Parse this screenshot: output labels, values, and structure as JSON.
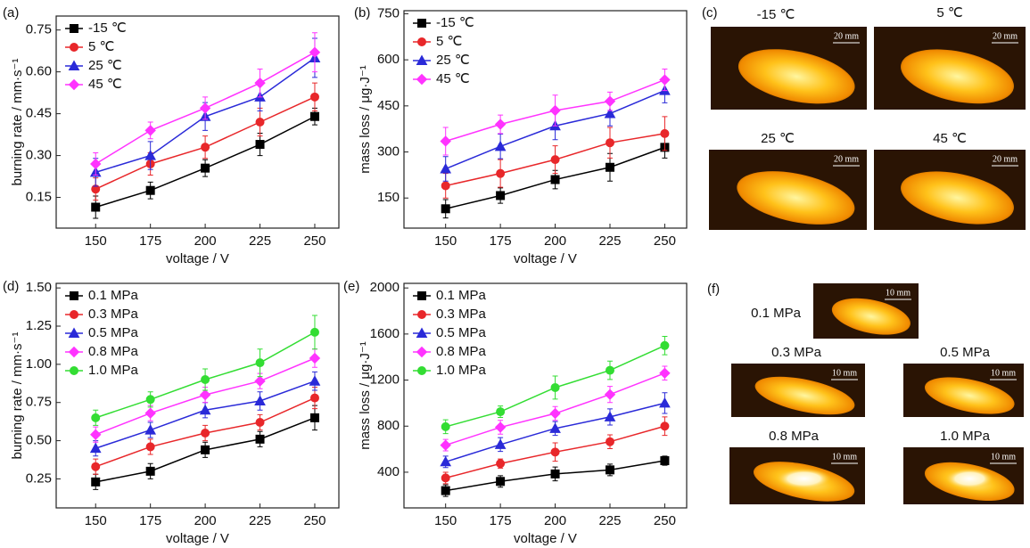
{
  "chart_data": [
    {
      "type": "line",
      "label": "(a)",
      "xlabel": "voltage / V",
      "ylabel": "burning rate / mm·s⁻¹",
      "x": [
        150,
        175,
        200,
        225,
        250
      ],
      "xlim": [
        132,
        261
      ],
      "xticks": [
        150,
        175,
        200,
        225,
        250
      ],
      "ylim": [
        0.04,
        0.8
      ],
      "yticks": [
        {
          "value": 0.15,
          "label": "0.15"
        },
        {
          "value": 0.3,
          "label": "0.30"
        },
        {
          "value": 0.45,
          "label": "0.45"
        },
        {
          "value": 0.6,
          "label": "0.60"
        },
        {
          "value": 0.75,
          "label": "0.75"
        }
      ],
      "legend": "upper left",
      "series": [
        {
          "name": "-15 ℃",
          "color": "#000000",
          "marker": "square",
          "values": [
            0.115,
            0.175,
            0.255,
            0.34,
            0.44
          ],
          "errors": [
            0.04,
            0.03,
            0.03,
            0.04,
            0.03
          ]
        },
        {
          "name": "5 ℃",
          "color": "#e8272a",
          "marker": "circle",
          "values": [
            0.18,
            0.27,
            0.33,
            0.42,
            0.51
          ],
          "errors": [
            0.04,
            0.04,
            0.04,
            0.05,
            0.05
          ]
        },
        {
          "name": "25 ℃",
          "color": "#2a2ad8",
          "marker": "triangle",
          "values": [
            0.24,
            0.3,
            0.44,
            0.51,
            0.65
          ],
          "errors": [
            0.05,
            0.05,
            0.05,
            0.05,
            0.07
          ]
        },
        {
          "name": "45 ℃",
          "color": "#ff33ff",
          "marker": "diamond",
          "values": [
            0.27,
            0.39,
            0.47,
            0.56,
            0.67
          ],
          "errors": [
            0.04,
            0.03,
            0.04,
            0.05,
            0.07
          ]
        }
      ]
    },
    {
      "type": "line",
      "label": "(b)",
      "xlabel": "voltage / V",
      "ylabel": "mass loss / μg·J⁻¹",
      "x": [
        150,
        175,
        200,
        225,
        250
      ],
      "xlim": [
        131,
        260
      ],
      "xticks": [
        150,
        175,
        200,
        225,
        250
      ],
      "ylim": [
        52,
        760
      ],
      "yticks": [
        150,
        300,
        450,
        600,
        750
      ],
      "legend": "upper left",
      "series": [
        {
          "name": "-15 ℃",
          "color": "#000000",
          "marker": "square",
          "values": [
            115,
            158,
            210,
            250,
            315
          ],
          "errors": [
            30,
            25,
            30,
            45,
            35
          ]
        },
        {
          "name": "5 ℃",
          "color": "#e8272a",
          "marker": "circle",
          "values": [
            190,
            230,
            275,
            330,
            360
          ],
          "errors": [
            40,
            45,
            45,
            50,
            55
          ]
        },
        {
          "name": "25 ℃",
          "color": "#2a2ad8",
          "marker": "triangle",
          "values": [
            245,
            318,
            385,
            425,
            500
          ],
          "errors": [
            40,
            40,
            45,
            40,
            40
          ]
        },
        {
          "name": "45 ℃",
          "color": "#ff33ff",
          "marker": "diamond",
          "values": [
            335,
            390,
            435,
            465,
            535
          ],
          "errors": [
            45,
            30,
            50,
            30,
            35
          ]
        }
      ]
    },
    {
      "type": "line",
      "label": "(d)",
      "xlabel": "voltage / V",
      "ylabel": "burning rate / mm·s⁻¹",
      "x": [
        150,
        175,
        200,
        225,
        250
      ],
      "xlim": [
        132,
        261
      ],
      "xticks": [
        150,
        175,
        200,
        225,
        250
      ],
      "ylim": [
        0.06,
        1.53
      ],
      "yticks": [
        {
          "value": 0.25,
          "label": "0.25"
        },
        {
          "value": 0.5,
          "label": "0.50"
        },
        {
          "value": 0.75,
          "label": "0.75"
        },
        {
          "value": 1,
          "label": "1.00"
        },
        {
          "value": 1.25,
          "label": "1.25"
        },
        {
          "value": 1.5,
          "label": "1.50"
        }
      ],
      "legend": "upper left",
      "series": [
        {
          "name": "0.1 MPa",
          "color": "#000000",
          "marker": "square",
          "values": [
            0.23,
            0.3,
            0.44,
            0.51,
            0.65
          ],
          "errors": [
            0.05,
            0.05,
            0.05,
            0.05,
            0.08
          ]
        },
        {
          "name": "0.3 MPa",
          "color": "#e8272a",
          "marker": "circle",
          "values": [
            0.33,
            0.46,
            0.55,
            0.62,
            0.78
          ],
          "errors": [
            0.05,
            0.05,
            0.05,
            0.05,
            0.07
          ]
        },
        {
          "name": "0.5 MPa",
          "color": "#2a2ad8",
          "marker": "triangle",
          "values": [
            0.45,
            0.57,
            0.7,
            0.76,
            0.89
          ],
          "errors": [
            0.05,
            0.05,
            0.05,
            0.06,
            0.06
          ]
        },
        {
          "name": "0.8 MPa",
          "color": "#ff33ff",
          "marker": "diamond",
          "values": [
            0.54,
            0.68,
            0.8,
            0.89,
            1.04
          ],
          "errors": [
            0.05,
            0.05,
            0.05,
            0.05,
            0.06
          ]
        },
        {
          "name": "1.0 MPa",
          "color": "#33dd33",
          "marker": "circle",
          "values": [
            0.65,
            0.77,
            0.9,
            1.01,
            1.21
          ],
          "errors": [
            0.05,
            0.05,
            0.07,
            0.09,
            0.11
          ]
        }
      ]
    },
    {
      "type": "line",
      "label": "(e)",
      "xlabel": "voltage / V",
      "ylabel": "mass loss / μg·J⁻¹",
      "x": [
        150,
        175,
        200,
        225,
        250
      ],
      "xlim": [
        131,
        260
      ],
      "xticks": [
        150,
        175,
        200,
        225,
        250
      ],
      "ylim": [
        90,
        2040
      ],
      "yticks": [
        400,
        800,
        1200,
        1600,
        2000
      ],
      "legend": "upper left",
      "series": [
        {
          "name": "0.1 MPa",
          "color": "#000000",
          "marker": "square",
          "values": [
            240,
            320,
            385,
            420,
            500
          ],
          "errors": [
            50,
            50,
            60,
            50,
            40
          ]
        },
        {
          "name": "0.3 MPa",
          "color": "#e8272a",
          "marker": "circle",
          "values": [
            350,
            475,
            575,
            665,
            800
          ],
          "errors": [
            50,
            40,
            80,
            60,
            80
          ]
        },
        {
          "name": "0.5 MPa",
          "color": "#2a2ad8",
          "marker": "triangle",
          "values": [
            490,
            640,
            780,
            880,
            1000
          ],
          "errors": [
            50,
            60,
            60,
            70,
            90
          ]
        },
        {
          "name": "0.8 MPa",
          "color": "#ff33ff",
          "marker": "diamond",
          "values": [
            635,
            790,
            910,
            1075,
            1260
          ],
          "errors": [
            50,
            60,
            60,
            70,
            60
          ]
        },
        {
          "name": "1.0 MPa",
          "color": "#33dd33",
          "marker": "circle",
          "values": [
            795,
            925,
            1135,
            1285,
            1500
          ],
          "errors": [
            60,
            50,
            100,
            80,
            80
          ]
        }
      ]
    }
  ],
  "images": [
    {
      "label": "(c)",
      "photos": [
        {
          "label": "-15 ℃",
          "scale": "20 mm"
        },
        {
          "label": "5 ℃",
          "scale": "20 mm"
        },
        {
          "label": "25 ℃",
          "scale": "20 mm"
        },
        {
          "label": "45 ℃",
          "scale": "20 mm"
        }
      ]
    },
    {
      "label": "(f)",
      "photos": [
        {
          "label": "0.1 MPa",
          "scale": "10 mm"
        },
        {
          "label": "0.3 MPa",
          "scale": "10 mm"
        },
        {
          "label": "0.5 MPa",
          "scale": "10 mm"
        },
        {
          "label": "0.8 MPa",
          "scale": "10 mm"
        },
        {
          "label": "1.0 MPa",
          "scale": "10 mm"
        }
      ]
    }
  ]
}
